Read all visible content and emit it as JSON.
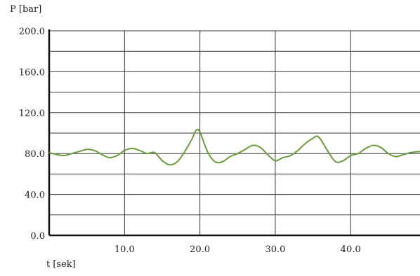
{
  "chart_data": {
    "type": "line",
    "ylabel": "P [bar]",
    "xlabel": "t [sek]",
    "xlim": [
      0,
      49.2
    ],
    "ylim": [
      0,
      200
    ],
    "x_ticks": [
      10,
      20,
      30,
      40
    ],
    "x_tick_labels": [
      "10.0",
      "20.0",
      "30.0",
      "40.0"
    ],
    "y_ticks": [
      0,
      40,
      80,
      120,
      160,
      200
    ],
    "y_tick_labels": [
      "0.0",
      "40.0",
      "80.0",
      "120.0",
      "160.0",
      "200.0"
    ],
    "grid": true,
    "line_color": "#6a9a3c",
    "series": [
      {
        "x": [
          0,
          1,
          2,
          3,
          4,
          5,
          6,
          7,
          8,
          9,
          10,
          11,
          12,
          13,
          14,
          15,
          16,
          17,
          18,
          19,
          19.5,
          20,
          21,
          22,
          23,
          24,
          25,
          26,
          27,
          28,
          29,
          30,
          31,
          32,
          33,
          34,
          35,
          35.5,
          36,
          37,
          38,
          39,
          40,
          41,
          42,
          43,
          44,
          45,
          46,
          47,
          48,
          49.2
        ],
        "y": [
          81,
          79,
          78,
          80,
          82,
          84,
          83,
          79,
          76,
          78,
          83,
          85,
          83,
          80,
          81,
          73,
          69,
          72,
          82,
          95,
          103,
          101,
          82,
          72,
          72,
          77,
          80,
          84,
          88,
          86,
          79,
          73,
          76,
          78,
          83,
          90,
          95,
          97,
          94,
          82,
          72,
          73,
          78,
          80,
          85,
          88,
          86,
          80,
          77,
          79,
          81,
          82
        ]
      }
    ]
  }
}
